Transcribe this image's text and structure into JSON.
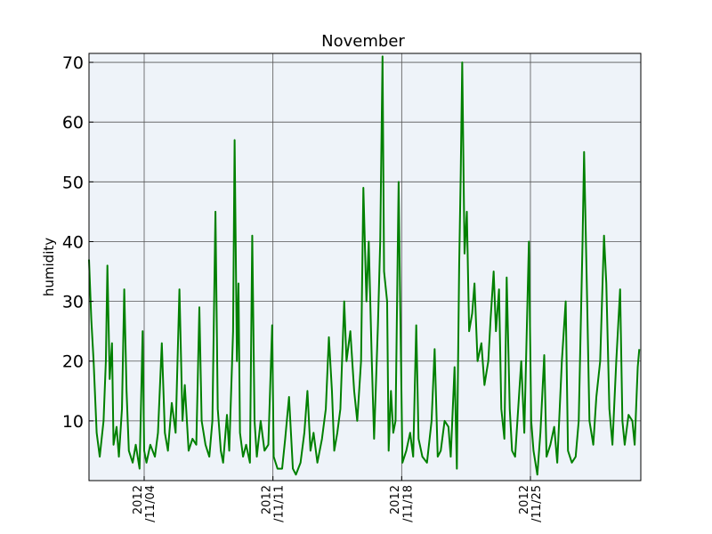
{
  "chart_data": {
    "type": "line",
    "title": "November",
    "y_label": "humidity",
    "color": "#008000",
    "background": "#eef3f9",
    "grid": true,
    "xlim": [
      "2012-11-01T00:00",
      "2012-12-01T00:00"
    ],
    "xticks": [
      {
        "value": "2012-11-04T00:00",
        "label": "2012\n/11/04"
      },
      {
        "value": "2012-11-11T00:00",
        "label": "2012\n/11/11"
      },
      {
        "value": "2012-11-18T00:00",
        "label": "2012\n/11/18"
      },
      {
        "value": "2012-11-25T00:00",
        "label": "2012\n/11/25"
      }
    ],
    "ylim": [
      0,
      71.5
    ],
    "yticks": [
      10,
      20,
      30,
      40,
      50,
      60,
      70
    ],
    "x": [
      "2012-11-01T00:00",
      "2012-11-01T03:00",
      "2012-11-01T06:00",
      "2012-11-01T10:00",
      "2012-11-01T14:00",
      "2012-11-01T19:00",
      "2012-11-01T22:00",
      "2012-11-02T00:00",
      "2012-11-02T03:00",
      "2012-11-02T06:00",
      "2012-11-02T08:00",
      "2012-11-02T12:00",
      "2012-11-02T15:00",
      "2012-11-02T19:00",
      "2012-11-02T22:00",
      "2012-11-03T01:00",
      "2012-11-03T04:00",
      "2012-11-03T09:00",
      "2012-11-03T13:00",
      "2012-11-03T18:00",
      "2012-11-03T22:00",
      "2012-11-04T00:00",
      "2012-11-04T03:00",
      "2012-11-04T08:00",
      "2012-11-04T14:00",
      "2012-11-04T18:00",
      "2012-11-04T23:00",
      "2012-11-05T03:00",
      "2012-11-05T07:00",
      "2012-11-05T12:00",
      "2012-11-05T17:00",
      "2012-11-05T22:00",
      "2012-11-06T02:00",
      "2012-11-06T05:00",
      "2012-11-06T10:00",
      "2012-11-06T15:00",
      "2012-11-06T20:00",
      "2012-11-07T00:00",
      "2012-11-07T03:00",
      "2012-11-07T08:00",
      "2012-11-07T13:00",
      "2012-11-07T17:00",
      "2012-11-07T21:00",
      "2012-11-08T00:00",
      "2012-11-08T04:00",
      "2012-11-08T07:00",
      "2012-11-08T12:00",
      "2012-11-08T15:00",
      "2012-11-08T20:00",
      "2012-11-08T22:00",
      "2012-11-09T01:00",
      "2012-11-09T03:00",
      "2012-11-09T05:00",
      "2012-11-09T09:00",
      "2012-11-09T13:00",
      "2012-11-09T18:00",
      "2012-11-09T21:00",
      "2012-11-10T00:00",
      "2012-11-10T03:00",
      "2012-11-10T08:00",
      "2012-11-10T13:00",
      "2012-11-10T18:00",
      "2012-11-10T23:00",
      "2012-11-11T01:00",
      "2012-11-11T06:00",
      "2012-11-11T12:00",
      "2012-11-11T16:00",
      "2012-11-11T21:00",
      "2012-11-12T02:00",
      "2012-11-12T06:00",
      "2012-11-12T12:00",
      "2012-11-12T17:00",
      "2012-11-12T21:00",
      "2012-11-13T01:00",
      "2012-11-13T05:00",
      "2012-11-13T10:00",
      "2012-11-13T16:00",
      "2012-11-13T21:00",
      "2012-11-14T01:00",
      "2012-11-14T05:00",
      "2012-11-14T08:00",
      "2012-11-14T12:00",
      "2012-11-14T16:00",
      "2012-11-14T21:00",
      "2012-11-15T00:00",
      "2012-11-15T05:00",
      "2012-11-15T10:00",
      "2012-11-15T14:00",
      "2012-11-15T19:00",
      "2012-11-15T22:00",
      "2012-11-16T02:00",
      "2012-11-16T05:00",
      "2012-11-16T09:00",
      "2012-11-16T12:00",
      "2012-11-16T17:00",
      "2012-11-16T20:00",
      "2012-11-16T23:00",
      "2012-11-17T01:00",
      "2012-11-17T05:00",
      "2012-11-17T07:00",
      "2012-11-17T10:00",
      "2012-11-17T13:00",
      "2012-11-17T16:00",
      "2012-11-17T20:00",
      "2012-11-17T22:00",
      "2012-11-18T01:00",
      "2012-11-18T06:00",
      "2012-11-18T11:00",
      "2012-11-18T15:00",
      "2012-11-18T19:00",
      "2012-11-18T22:00",
      "2012-11-19T03:00",
      "2012-11-19T09:00",
      "2012-11-19T15:00",
      "2012-11-19T19:00",
      "2012-11-19T23:00",
      "2012-11-20T03:00",
      "2012-11-20T08:00",
      "2012-11-20T13:00",
      "2012-11-20T16:00",
      "2012-11-20T21:00",
      "2012-11-21T00:00",
      "2012-11-21T03:00",
      "2012-11-21T05:00",
      "2012-11-21T07:00",
      "2012-11-21T10:00",
      "2012-11-21T13:00",
      "2012-11-21T16:00",
      "2012-11-21T20:00",
      "2012-11-21T23:00",
      "2012-11-22T03:00",
      "2012-11-22T08:00",
      "2012-11-22T12:00",
      "2012-11-22T17:00",
      "2012-11-22T20:00",
      "2012-11-23T00:00",
      "2012-11-23T03:00",
      "2012-11-23T07:00",
      "2012-11-23T10:00",
      "2012-11-23T14:00",
      "2012-11-23T17:00",
      "2012-11-23T21:00",
      "2012-11-24T00:00",
      "2012-11-24T04:00",
      "2012-11-24T07:00",
      "2012-11-24T12:00",
      "2012-11-24T16:00",
      "2012-11-24T22:00",
      "2012-11-25T01:00",
      "2012-11-25T04:00",
      "2012-11-25T09:00",
      "2012-11-25T13:00",
      "2012-11-25T18:00",
      "2012-11-25T21:00",
      "2012-11-26T02:00",
      "2012-11-26T07:00",
      "2012-11-26T11:00",
      "2012-11-26T17:00",
      "2012-11-26T22:00",
      "2012-11-27T01:00",
      "2012-11-27T06:00",
      "2012-11-27T11:00",
      "2012-11-27T15:00",
      "2012-11-27T20:00",
      "2012-11-27T22:00",
      "2012-11-28T02:00",
      "2012-11-28T05:00",
      "2012-11-28T10:00",
      "2012-11-28T14:00",
      "2012-11-28T19:00",
      "2012-11-29T00:00",
      "2012-11-29T03:00",
      "2012-11-29T07:00",
      "2012-11-29T11:00",
      "2012-11-29T16:00",
      "2012-11-29T21:00",
      "2012-11-30T00:00",
      "2012-11-30T03:00",
      "2012-11-30T08:00",
      "2012-11-30T13:00",
      "2012-11-30T16:00",
      "2012-11-30T20:00",
      "2012-11-30T22:00"
    ],
    "values": [
      37,
      27,
      20,
      8,
      4,
      10,
      20,
      36,
      17,
      23,
      6,
      9,
      4,
      12,
      32,
      15,
      5,
      3,
      6,
      2,
      25,
      5,
      3,
      6,
      4,
      8,
      23,
      8,
      5,
      13,
      8,
      32,
      10,
      16,
      5,
      7,
      6,
      29,
      10,
      6,
      4,
      10,
      45,
      12,
      5,
      3,
      11,
      5,
      25,
      57,
      20,
      33,
      8,
      4,
      6,
      3,
      41,
      10,
      4,
      10,
      5,
      6,
      26,
      4,
      2,
      2,
      7,
      14,
      2,
      1,
      3,
      8,
      15,
      5,
      8,
      3,
      7,
      12,
      24,
      15,
      5,
      8,
      12,
      30,
      20,
      25,
      15,
      10,
      20,
      49,
      30,
      40,
      20,
      7,
      26,
      40,
      71,
      35,
      30,
      5,
      15,
      8,
      10,
      50,
      30,
      3,
      5,
      8,
      4,
      26,
      7,
      4,
      3,
      10,
      22,
      4,
      5,
      10,
      9,
      4,
      19,
      2,
      36,
      51,
      70,
      38,
      45,
      25,
      28,
      33,
      20,
      23,
      16,
      20,
      27,
      35,
      25,
      32,
      12,
      7,
      34,
      12,
      5,
      4,
      10,
      20,
      8,
      40,
      10,
      5,
      1,
      8,
      21,
      4,
      6,
      9,
      3,
      20,
      30,
      5,
      3,
      4,
      10,
      40,
      55,
      30,
      10,
      6,
      14,
      20,
      41,
      33,
      12,
      6,
      20,
      32,
      10,
      6,
      11,
      10,
      6,
      19,
      22
    ]
  }
}
